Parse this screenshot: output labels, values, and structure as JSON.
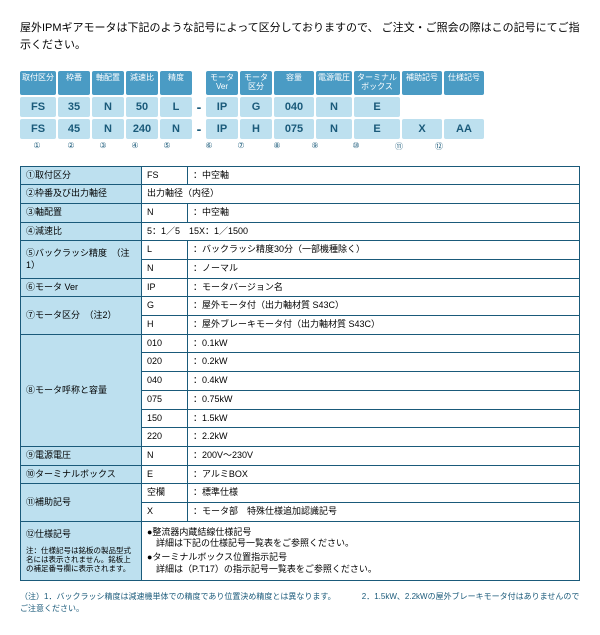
{
  "intro": "屋外IPMギアモータは下記のような記号によって区分しておりますので、\nご注文・ご照会の際はこの記号にてご指示ください。",
  "headers": [
    "取付区分",
    "枠番",
    "軸配置",
    "減速比",
    "精度",
    "モータVer",
    "モータ区分",
    "容量",
    "電源電圧",
    "ターミナルボックス",
    "補助記号",
    "仕様記号"
  ],
  "ex1": [
    "FS",
    "35",
    "N",
    "50",
    "L",
    "-",
    "IP",
    "G",
    "040",
    "N",
    "E",
    "",
    ""
  ],
  "ex2": [
    "FS",
    "45",
    "N",
    "240",
    "N",
    "-",
    "IP",
    "H",
    "075",
    "N",
    "E",
    "X",
    "AA"
  ],
  "circles": [
    "①",
    "②",
    "③",
    "④",
    "⑤",
    "",
    "⑥",
    "⑦",
    "⑧",
    "⑨",
    "⑩",
    "⑪",
    "⑫"
  ],
  "rows": [
    {
      "lbl": "①取付区分",
      "items": [
        [
          "FS",
          "：中空軸"
        ]
      ]
    },
    {
      "lbl": "②枠番及び出力軸径",
      "items": [
        [
          "",
          "出力軸径（内径）"
        ]
      ],
      "span": true
    },
    {
      "lbl": "③軸配置",
      "items": [
        [
          "N",
          "：中空軸"
        ]
      ]
    },
    {
      "lbl": "④減速比",
      "items": [
        [
          "",
          "5：1／5　15X：1／1500"
        ]
      ],
      "span": true
    },
    {
      "lbl": "⑤バックラッシ精度　（注1）",
      "items": [
        [
          "L",
          "：バックラッシ精度30分（一部機種除く）"
        ],
        [
          "N",
          "：ノーマル"
        ]
      ]
    },
    {
      "lbl": "⑥モータ Ver",
      "items": [
        [
          "IP",
          "：モータバージョン名"
        ]
      ]
    },
    {
      "lbl": "⑦モータ区分　（注2）",
      "items": [
        [
          "G",
          "：屋外モータ付（出力軸材質 S43C）"
        ],
        [
          "H",
          "：屋外ブレーキモータ付（出力軸材質 S43C）"
        ]
      ]
    },
    {
      "lbl": "⑧モータ呼称と容量",
      "items": [
        [
          "010",
          "：0.1kW"
        ],
        [
          "020",
          "：0.2kW"
        ],
        [
          "040",
          "：0.4kW"
        ],
        [
          "075",
          "：0.75kW"
        ],
        [
          "150",
          "：1.5kW"
        ],
        [
          "220",
          "：2.2kW"
        ]
      ]
    },
    {
      "lbl": "⑨電源電圧",
      "items": [
        [
          "N",
          "：200V～230V"
        ]
      ]
    },
    {
      "lbl": "⑩ターミナルボックス",
      "items": [
        [
          "E",
          "：アルミBOX"
        ]
      ]
    },
    {
      "lbl": "⑪補助記号",
      "items": [
        [
          "空欄",
          "：標準仕様"
        ],
        [
          "X",
          "：モータ部　特殊仕様追加認識記号"
        ]
      ]
    }
  ],
  "row12": {
    "lbl": "⑫仕様記号",
    "note": "注：仕様記号は銘板の製品型式名には表示されません。銘板上の補足番号欄に表示されます。",
    "bullets": [
      "●整流器内蔵結線仕様記号\n　詳細は下記の仕様記号一覧表をご参照ください。",
      "●ターミナルボックス位置指示記号\n　詳細は（P.T17）の指示記号一覧表をご参照ください。"
    ]
  },
  "footnotes": "（注）1．バックラッシ精度は減速機単体での精度であり位置決め精度とは異なります。\n　　　2．1.5kW、2.2kWの屋外ブレーキモータ付はありませんのでご注意ください。"
}
